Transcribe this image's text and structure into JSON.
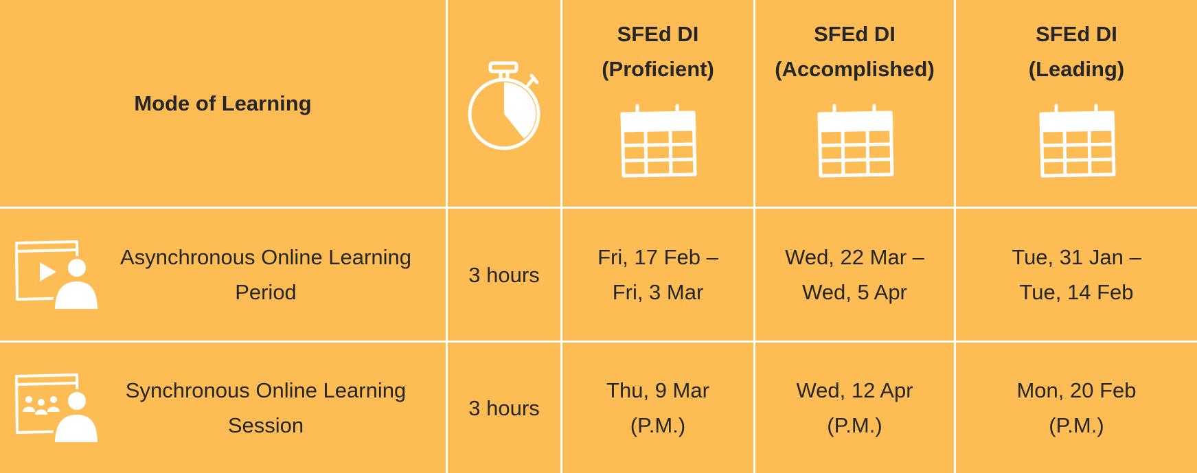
{
  "header": {
    "mode_label": "Mode of Learning",
    "duration_icon": "stopwatch-icon",
    "columns": [
      {
        "label": "SFEd DI\n(Proficient)",
        "icon": "calendar-icon"
      },
      {
        "label": "SFEd DI\n(Accomplished)",
        "icon": "calendar-icon"
      },
      {
        "label": "SFEd DI\n(Leading)",
        "icon": "calendar-icon"
      }
    ]
  },
  "rows": [
    {
      "icon": "video-learner-icon",
      "mode": "Asynchronous Online Learning\nPeriod",
      "duration": "3 hours",
      "dates": [
        "Fri, 17 Feb –\nFri, 3 Mar",
        "Wed, 22 Mar –\nWed, 5 Apr",
        "Tue, 31 Jan –\nTue, 14 Feb"
      ]
    },
    {
      "icon": "virtual-class-learner-icon",
      "mode": "Synchronous Online Learning\nSession",
      "duration": "3 hours",
      "dates": [
        "Thu, 9 Mar\n(P.M.)",
        "Wed, 12 Apr\n(P.M.)",
        "Mon, 20 Feb\n(P.M.)"
      ]
    }
  ],
  "colors": {
    "background": "#fdbd54",
    "grid_lines": "#ffffff",
    "text": "#262626"
  }
}
